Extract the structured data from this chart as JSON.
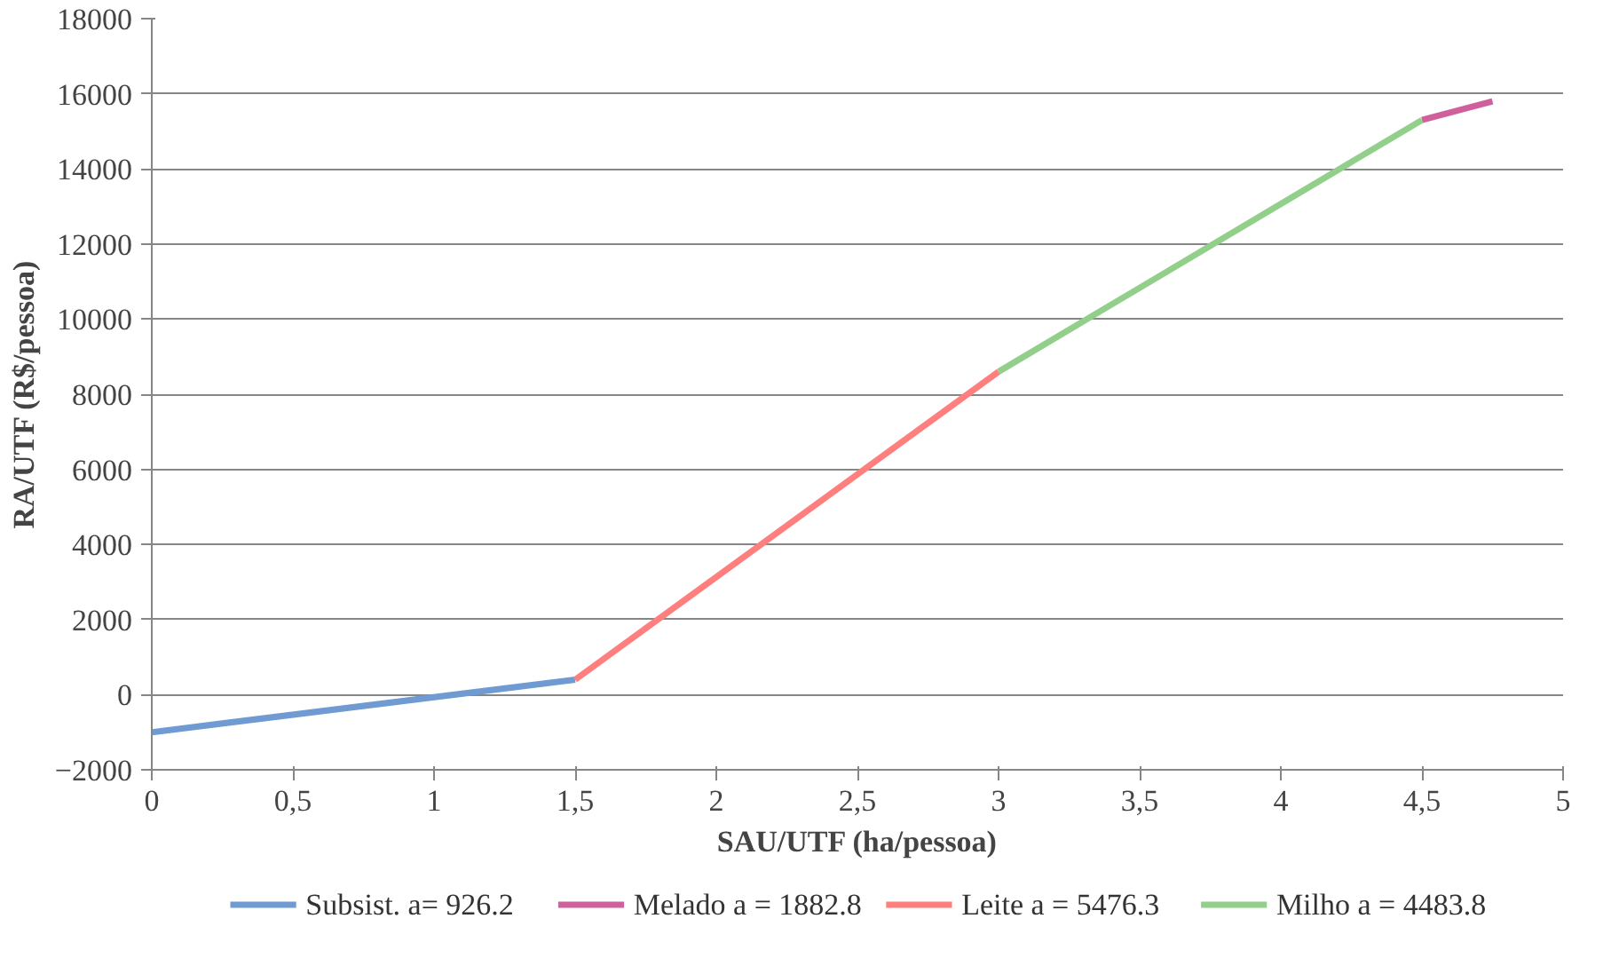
{
  "chart_data": {
    "type": "line",
    "xlabel": "SAU/UTF (ha/pessoa)",
    "ylabel": "RA/UTF (R$/pessoa)",
    "series": [
      {
        "name": "Subsist. a= 926.2",
        "color": "#6f9bd2",
        "x": [
          0,
          1.5
        ],
        "values": [
          -1000,
          400
        ]
      },
      {
        "name": "Melado a = 1882.8",
        "color": "#d0609c",
        "x": [
          4.5,
          4.75
        ],
        "values": [
          15300,
          15800
        ]
      },
      {
        "name": "Leite a = 5476.3",
        "color": "#ff7f7f",
        "x": [
          1.5,
          3
        ],
        "values": [
          400,
          8600
        ]
      },
      {
        "name": "Milho a = 4483.8",
        "color": "#92cf8a",
        "x": [
          3,
          4.5
        ],
        "values": [
          8600,
          15300
        ]
      }
    ],
    "xlim": [
      0,
      5
    ],
    "xticks": [
      0,
      {
        "value": 0.5,
        "label": "0,5"
      },
      1,
      {
        "value": 1.5,
        "label": "1,5"
      },
      2,
      {
        "value": 2.5,
        "label": "2,5"
      },
      3,
      {
        "value": 3.5,
        "label": "3,5"
      },
      4,
      {
        "value": 4.5,
        "label": "4,5"
      },
      5
    ],
    "ylim": [
      -2000,
      18000
    ],
    "yticks": [
      -2000,
      0,
      2000,
      4000,
      6000,
      8000,
      10000,
      12000,
      14000,
      16000,
      18000
    ],
    "grid": "y",
    "legend": "bottom",
    "marker": "none",
    "line_style": "solid"
  }
}
